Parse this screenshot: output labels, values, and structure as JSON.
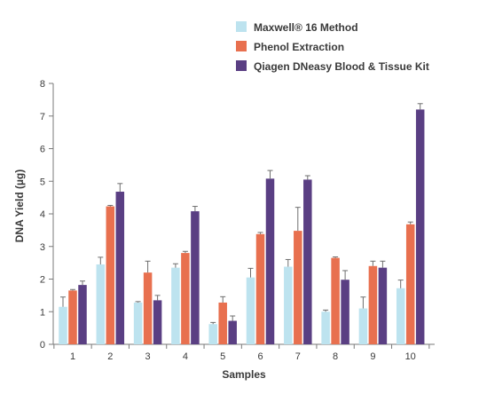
{
  "chart_data": {
    "type": "bar",
    "title": "",
    "xlabel": "Samples",
    "ylabel": "DNA Yield (µg)",
    "ylim": [
      0,
      8
    ],
    "yticks": [
      "0",
      "1",
      "2",
      "3",
      "4",
      "5",
      "6",
      "7",
      "8"
    ],
    "categories": [
      "1",
      "2",
      "3",
      "4",
      "5",
      "6",
      "7",
      "8",
      "9",
      "10"
    ],
    "legend_position": "top-right",
    "grid": false,
    "series": [
      {
        "name": "Maxwell® 16 Method",
        "color": "#bde3ef",
        "values": [
          1.15,
          2.45,
          1.28,
          2.35,
          0.62,
          2.05,
          2.38,
          1.0,
          1.1,
          1.72
        ],
        "errors": [
          0.3,
          0.22,
          0.03,
          0.12,
          0.05,
          0.28,
          0.22,
          0.05,
          0.35,
          0.25
        ]
      },
      {
        "name": "Phenol Extraction",
        "color": "#e8704f",
        "values": [
          1.65,
          4.23,
          2.2,
          2.8,
          1.28,
          3.38,
          3.48,
          2.65,
          2.4,
          3.68
        ],
        "errors": [
          0.03,
          0.03,
          0.35,
          0.05,
          0.18,
          0.05,
          0.72,
          0.03,
          0.15,
          0.07
        ]
      },
      {
        "name": "Qiagen DNeasy Blood & Tissue Kit",
        "color": "#5a3f83",
        "values": [
          1.82,
          4.68,
          1.35,
          4.08,
          0.72,
          5.08,
          5.05,
          1.98,
          2.35,
          7.2
        ],
        "errors": [
          0.12,
          0.25,
          0.15,
          0.15,
          0.15,
          0.25,
          0.12,
          0.28,
          0.2,
          0.18
        ]
      }
    ]
  }
}
